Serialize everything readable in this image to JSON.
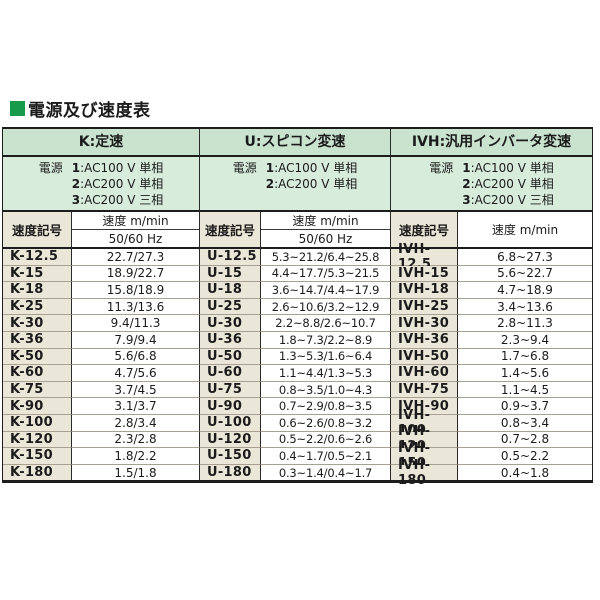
{
  "title": {
    "bullet_icon": "green-square",
    "text": "電源及び速度表"
  },
  "colors": {
    "accent_green": "#189a4b",
    "header_bg": "#c9e3cf",
    "power_bg": "#d8ecdc",
    "code_bg": "#ebe7d8",
    "row_line": "#a8a192",
    "border_dark": "#1d1d1d"
  },
  "table": {
    "groups": [
      {
        "id": "K",
        "header": "K:定速",
        "power_lines": [
          {
            "label": "電源 ",
            "num": "1",
            "rest": ":AC100 V 単相"
          },
          {
            "label": "",
            "num": "2",
            "rest": ":AC200 V 単相"
          },
          {
            "label": "",
            "num": "3",
            "rest": ":AC200 V 三相"
          }
        ],
        "sub_code_label": "速度記号",
        "speed_label": "速度 m/min",
        "freq_label": "50/60 Hz"
      },
      {
        "id": "U",
        "header": "U:スピコン変速",
        "power_lines": [
          {
            "label": "電源 ",
            "num": "1",
            "rest": ":AC100 V 単相"
          },
          {
            "label": "",
            "num": "2",
            "rest": ":AC200 V 単相"
          }
        ],
        "sub_code_label": "速度記号",
        "speed_label": "速度 m/min",
        "freq_label": "50/60 Hz"
      },
      {
        "id": "IVH",
        "header": "IVH:汎用インバータ変速",
        "power_lines": [
          {
            "label": "電源 ",
            "num": "1",
            "rest": ":AC100 V 単相"
          },
          {
            "label": "",
            "num": "2",
            "rest": ":AC200 V 単相"
          },
          {
            "label": "",
            "num": "3",
            "rest": ":AC200 V 三相"
          }
        ],
        "sub_code_label": "速度記号",
        "speed_label": "速度 m/min"
      }
    ],
    "rows": [
      {
        "k_code": "K-12.5",
        "k_value": "22.7/27.3",
        "u_code": "U-12.5",
        "u_value": "5.3~21.2/6.4~25.8",
        "ivh_code": "IVH-12.5",
        "ivh_value": "6.8~27.3"
      },
      {
        "k_code": "K-15",
        "k_value": "18.9/22.7",
        "u_code": "U-15",
        "u_value": "4.4~17.7/5.3~21.5",
        "ivh_code": "IVH-15",
        "ivh_value": "5.6~22.7"
      },
      {
        "k_code": "K-18",
        "k_value": "15.8/18.9",
        "u_code": "U-18",
        "u_value": "3.6~14.7/4.4~17.9",
        "ivh_code": "IVH-18",
        "ivh_value": "4.7~18.9"
      },
      {
        "k_code": "K-25",
        "k_value": "11.3/13.6",
        "u_code": "U-25",
        "u_value": "2.6~10.6/3.2~12.9",
        "ivh_code": "IVH-25",
        "ivh_value": "3.4~13.6"
      },
      {
        "k_code": "K-30",
        "k_value": "9.4/11.3",
        "u_code": "U-30",
        "u_value": "2.2~8.8/2.6~10.7",
        "ivh_code": "IVH-30",
        "ivh_value": "2.8~11.3"
      },
      {
        "k_code": "K-36",
        "k_value": "7.9/9.4",
        "u_code": "U-36",
        "u_value": "1.8~7.3/2.2~8.9",
        "ivh_code": "IVH-36",
        "ivh_value": "2.3~9.4"
      },
      {
        "k_code": "K-50",
        "k_value": "5.6/6.8",
        "u_code": "U-50",
        "u_value": "1.3~5.3/1.6~6.4",
        "ivh_code": "IVH-50",
        "ivh_value": "1.7~6.8"
      },
      {
        "k_code": "K-60",
        "k_value": "4.7/5.6",
        "u_code": "U-60",
        "u_value": "1.1~4.4/1.3~5.3",
        "ivh_code": "IVH-60",
        "ivh_value": "1.4~5.6"
      },
      {
        "k_code": "K-75",
        "k_value": "3.7/4.5",
        "u_code": "U-75",
        "u_value": "0.8~3.5/1.0~4.3",
        "ivh_code": "IVH-75",
        "ivh_value": "1.1~4.5"
      },
      {
        "k_code": "K-90",
        "k_value": "3.1/3.7",
        "u_code": "U-90",
        "u_value": "0.7~2.9/0.8~3.5",
        "ivh_code": "IVH-90",
        "ivh_value": "0.9~3.7"
      },
      {
        "k_code": "K-100",
        "k_value": "2.8/3.4",
        "u_code": "U-100",
        "u_value": "0.6~2.6/0.8~3.2",
        "ivh_code": "IVH-100",
        "ivh_value": "0.8~3.4"
      },
      {
        "k_code": "K-120",
        "k_value": "2.3/2.8",
        "u_code": "U-120",
        "u_value": "0.5~2.2/0.6~2.6",
        "ivh_code": "IVH-120",
        "ivh_value": "0.7~2.8"
      },
      {
        "k_code": "K-150",
        "k_value": "1.8/2.2",
        "u_code": "U-150",
        "u_value": "0.4~1.7/0.5~2.1",
        "ivh_code": "IVH-150",
        "ivh_value": "0.5~2.2"
      },
      {
        "k_code": "K-180",
        "k_value": "1.5/1.8",
        "u_code": "U-180",
        "u_value": "0.3~1.4/0.4~1.7",
        "ivh_code": "IVH-180",
        "ivh_value": "0.4~1.8"
      }
    ]
  }
}
